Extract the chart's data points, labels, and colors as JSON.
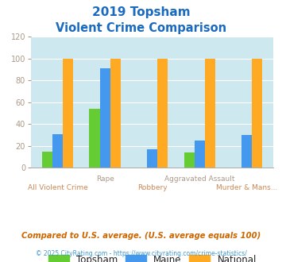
{
  "title_line1": "2019 Topsham",
  "title_line2": "Violent Crime Comparison",
  "categories": [
    "All Violent Crime",
    "Rape",
    "Robbery",
    "Aggravated Assault",
    "Murder & Mans..."
  ],
  "topsham": [
    15,
    54,
    0,
    14,
    0
  ],
  "maine": [
    31,
    91,
    17,
    25,
    30
  ],
  "national": [
    100,
    100,
    100,
    100,
    100
  ],
  "color_topsham": "#66cc33",
  "color_maine": "#4499ee",
  "color_national": "#ffaa22",
  "color_title": "#1a6abf",
  "color_xlabel_top": "#aa9988",
  "color_xlabel_bot": "#cc8855",
  "color_ytick": "#aa9988",
  "ylim": [
    0,
    120
  ],
  "yticks": [
    0,
    20,
    40,
    60,
    80,
    100,
    120
  ],
  "footer1": "Compared to U.S. average. (U.S. average equals 100)",
  "footer2": "© 2025 CityRating.com - https://www.cityrating.com/crime-statistics/",
  "background_color": "#cde8ee",
  "bar_width": 0.22
}
